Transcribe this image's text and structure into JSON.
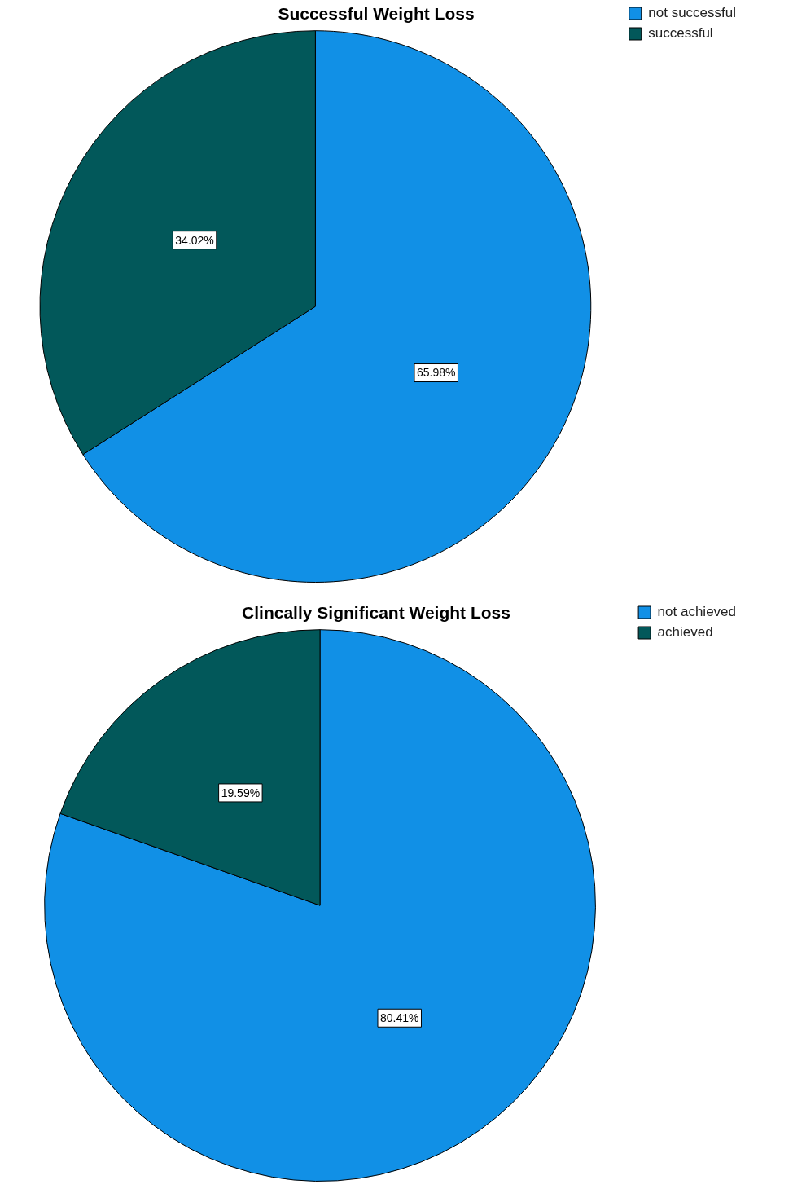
{
  "chart_data": [
    {
      "type": "pie",
      "title": "Successful Weight Loss",
      "categories": [
        "not successful",
        "successful"
      ],
      "values": [
        65.98,
        34.02
      ],
      "colors": [
        "#1190e6",
        "#02585a"
      ],
      "value_labels": [
        "65.98%",
        "34.02%"
      ],
      "legend": "top right"
    },
    {
      "type": "pie",
      "title": "Clincally Significant Weight Loss",
      "categories": [
        "not achieved",
        "achieved"
      ],
      "values": [
        80.41,
        19.59
      ],
      "colors": [
        "#1190e6",
        "#02585a"
      ],
      "value_labels": [
        "80.41%",
        "19.59%"
      ],
      "legend": "top right"
    }
  ]
}
